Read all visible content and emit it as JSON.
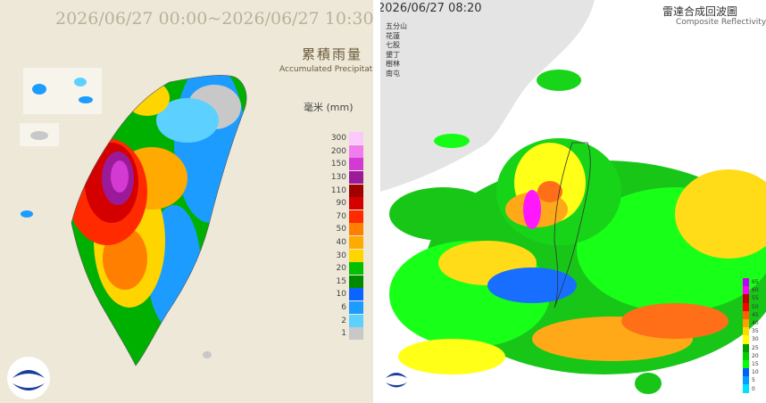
{
  "left": {
    "title": "2026/06/27 00:00~2026/06/27 10:30",
    "heading": "累積雨量",
    "heading_en": "Accumulated Precipitation",
    "unit": "毫米 (mm)",
    "legend": [
      {
        "label": "300",
        "color": "#fbc9fb"
      },
      {
        "label": "200",
        "color": "#f07cf0"
      },
      {
        "label": "150",
        "color": "#d23ad2"
      },
      {
        "label": "130",
        "color": "#9a1a9a"
      },
      {
        "label": "110",
        "color": "#a00000"
      },
      {
        "label": "90",
        "color": "#d40000"
      },
      {
        "label": "70",
        "color": "#ff2a00"
      },
      {
        "label": "50",
        "color": "#ff8000"
      },
      {
        "label": "40",
        "color": "#ffaa00"
      },
      {
        "label": "30",
        "color": "#ffd500"
      },
      {
        "label": "20",
        "color": "#00c000"
      },
      {
        "label": "15",
        "color": "#008a00"
      },
      {
        "label": "10",
        "color": "#0a64ff"
      },
      {
        "label": "6",
        "color": "#1c9cff"
      },
      {
        "label": "2",
        "color": "#5cd0ff"
      },
      {
        "label": "1",
        "color": "#c8c8c8"
      }
    ]
  },
  "right": {
    "timestamp": "2026/06/27 08:20",
    "heading": "雷達合成回波圖",
    "heading_en": "Composite Reflectivity",
    "stations": [
      "五分山",
      "花蓮",
      "七股",
      "墾丁",
      "樹林",
      "南屯"
    ],
    "legend": [
      {
        "label": "65",
        "color": "#c000ff"
      },
      {
        "label": "60",
        "color": "#ff00ff"
      },
      {
        "label": "55",
        "color": "#c00000"
      },
      {
        "label": "50",
        "color": "#ff0000"
      },
      {
        "label": "45",
        "color": "#ff6000"
      },
      {
        "label": "40",
        "color": "#ffa000"
      },
      {
        "label": "35",
        "color": "#ffd800"
      },
      {
        "label": "30",
        "color": "#ffff00"
      },
      {
        "label": "25",
        "color": "#00a000"
      },
      {
        "label": "20",
        "color": "#00d000"
      },
      {
        "label": "15",
        "color": "#00ff00"
      },
      {
        "label": "10",
        "color": "#0060ff"
      },
      {
        "label": "5",
        "color": "#00a0ff"
      },
      {
        "label": "0",
        "color": "#00e0ff"
      }
    ]
  }
}
